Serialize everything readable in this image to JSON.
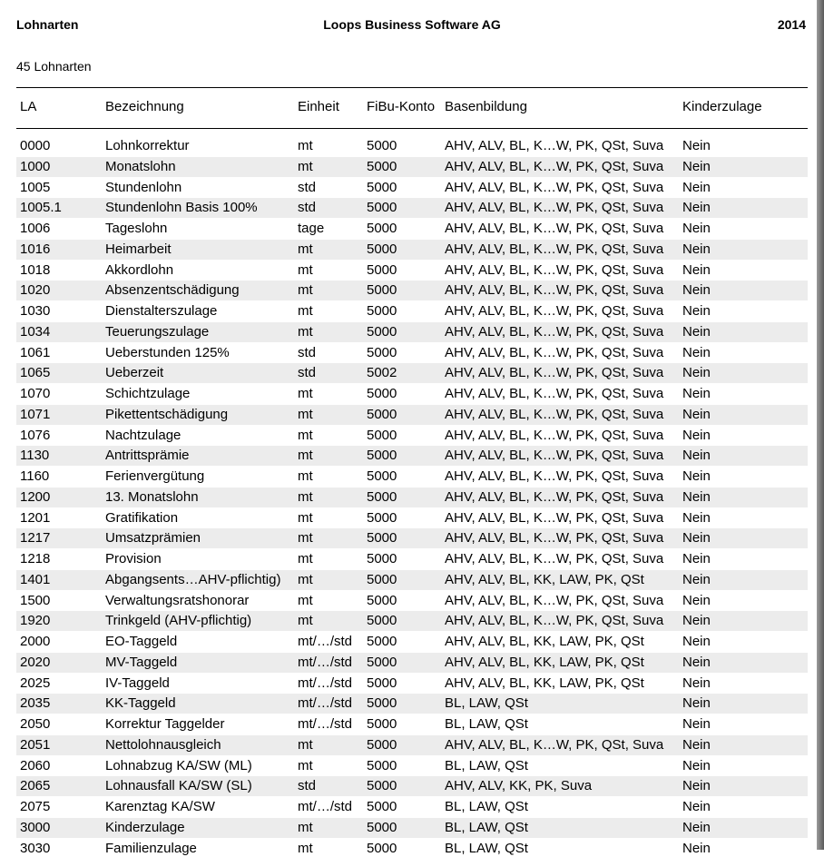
{
  "header": {
    "left": "Lohnarten",
    "center": "Loops Business Software AG",
    "right": "2014"
  },
  "subtitle": "45 Lohnarten",
  "table": {
    "columns": [
      "LA",
      "Bezeichnung",
      "Einheit",
      "FiBu-Konto",
      "Basenbildung",
      "Kinderzulage"
    ],
    "rows": [
      [
        "0000",
        "Lohnkorrektur",
        "mt",
        "5000",
        "AHV, ALV, BL, K…W, PK, QSt, Suva",
        "Nein"
      ],
      [
        "1000",
        "Monatslohn",
        "mt",
        "5000",
        "AHV, ALV, BL, K…W, PK, QSt, Suva",
        "Nein"
      ],
      [
        "1005",
        "Stundenlohn",
        "std",
        "5000",
        "AHV, ALV, BL, K…W, PK, QSt, Suva",
        "Nein"
      ],
      [
        "1005.1",
        "Stundenlohn Basis 100%",
        "std",
        "5000",
        "AHV, ALV, BL, K…W, PK, QSt, Suva",
        "Nein"
      ],
      [
        "1006",
        "Tageslohn",
        "tage",
        "5000",
        "AHV, ALV, BL, K…W, PK, QSt, Suva",
        "Nein"
      ],
      [
        "1016",
        "Heimarbeit",
        "mt",
        "5000",
        "AHV, ALV, BL, K…W, PK, QSt, Suva",
        "Nein"
      ],
      [
        "1018",
        "Akkordlohn",
        "mt",
        "5000",
        "AHV, ALV, BL, K…W, PK, QSt, Suva",
        "Nein"
      ],
      [
        "1020",
        "Absenzentschädigung",
        "mt",
        "5000",
        "AHV, ALV, BL, K…W, PK, QSt, Suva",
        "Nein"
      ],
      [
        "1030",
        "Dienstalterszulage",
        "mt",
        "5000",
        "AHV, ALV, BL, K…W, PK, QSt, Suva",
        "Nein"
      ],
      [
        "1034",
        "Teuerungszulage",
        "mt",
        "5000",
        "AHV, ALV, BL, K…W, PK, QSt, Suva",
        "Nein"
      ],
      [
        "1061",
        "Ueberstunden 125%",
        "std",
        "5000",
        "AHV, ALV, BL, K…W, PK, QSt, Suva",
        "Nein"
      ],
      [
        "1065",
        "Ueberzeit",
        "std",
        "5002",
        "AHV, ALV, BL, K…W, PK, QSt, Suva",
        "Nein"
      ],
      [
        "1070",
        "Schichtzulage",
        "mt",
        "5000",
        "AHV, ALV, BL, K…W, PK, QSt, Suva",
        "Nein"
      ],
      [
        "1071",
        "Pikettentschädigung",
        "mt",
        "5000",
        "AHV, ALV, BL, K…W, PK, QSt, Suva",
        "Nein"
      ],
      [
        "1076",
        "Nachtzulage",
        "mt",
        "5000",
        "AHV, ALV, BL, K…W, PK, QSt, Suva",
        "Nein"
      ],
      [
        "1130",
        "Antrittsprämie",
        "mt",
        "5000",
        "AHV, ALV, BL, K…W, PK, QSt, Suva",
        "Nein"
      ],
      [
        "1160",
        "Ferienvergütung",
        "mt",
        "5000",
        "AHV, ALV, BL, K…W, PK, QSt, Suva",
        "Nein"
      ],
      [
        "1200",
        "13. Monatslohn",
        "mt",
        "5000",
        "AHV, ALV, BL, K…W, PK, QSt, Suva",
        "Nein"
      ],
      [
        "1201",
        "Gratifikation",
        "mt",
        "5000",
        "AHV, ALV, BL, K…W, PK, QSt, Suva",
        "Nein"
      ],
      [
        "1217",
        "Umsatzprämien",
        "mt",
        "5000",
        "AHV, ALV, BL, K…W, PK, QSt, Suva",
        "Nein"
      ],
      [
        "1218",
        "Provision",
        "mt",
        "5000",
        "AHV, ALV, BL, K…W, PK, QSt, Suva",
        "Nein"
      ],
      [
        "1401",
        "Abgangsents…AHV-pflichtig)",
        "mt",
        "5000",
        "AHV, ALV, BL, KK, LAW, PK, QSt",
        "Nein"
      ],
      [
        "1500",
        "Verwaltungsratshonorar",
        "mt",
        "5000",
        "AHV, ALV, BL, K…W, PK, QSt, Suva",
        "Nein"
      ],
      [
        "1920",
        "Trinkgeld (AHV-pflichtig)",
        "mt",
        "5000",
        "AHV, ALV, BL, K…W, PK, QSt, Suva",
        "Nein"
      ],
      [
        "2000",
        "EO-Taggeld",
        "mt/…/std",
        "5000",
        "AHV, ALV, BL, KK, LAW, PK, QSt",
        "Nein"
      ],
      [
        "2020",
        "MV-Taggeld",
        "mt/…/std",
        "5000",
        "AHV, ALV, BL, KK, LAW, PK, QSt",
        "Nein"
      ],
      [
        "2025",
        "IV-Taggeld",
        "mt/…/std",
        "5000",
        "AHV, ALV, BL, KK, LAW, PK, QSt",
        "Nein"
      ],
      [
        "2035",
        "KK-Taggeld",
        "mt/…/std",
        "5000",
        "BL, LAW, QSt",
        "Nein"
      ],
      [
        "2050",
        "Korrektur Taggelder",
        "mt/…/std",
        "5000",
        "BL, LAW, QSt",
        "Nein"
      ],
      [
        "2051",
        "Nettolohnausgleich",
        "mt",
        "5000",
        "AHV, ALV, BL, K…W, PK, QSt, Suva",
        "Nein"
      ],
      [
        "2060",
        "Lohnabzug KA/SW (ML)",
        "mt",
        "5000",
        "BL, LAW, QSt",
        "Nein"
      ],
      [
        "2065",
        "Lohnausfall KA/SW (SL)",
        "std",
        "5000",
        "AHV, ALV, KK, PK, Suva",
        "Nein"
      ],
      [
        "2075",
        "Karenztag KA/SW",
        "mt/…/std",
        "5000",
        "BL, LAW, QSt",
        "Nein"
      ],
      [
        "3000",
        "Kinderzulage",
        "mt",
        "5000",
        "BL, LAW, QSt",
        "Nein"
      ],
      [
        "3030",
        "Familienzulage",
        "mt",
        "5000",
        "BL, LAW, QSt",
        "Nein"
      ]
    ]
  }
}
